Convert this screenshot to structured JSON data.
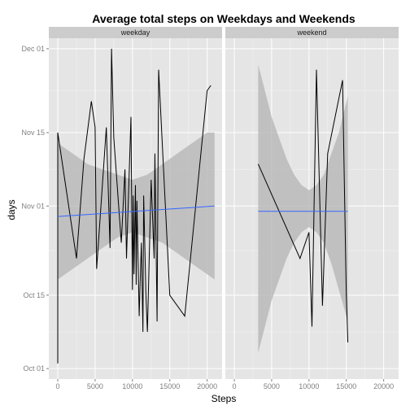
{
  "chart_data": {
    "type": "line",
    "title": "Average total steps on Weekdays and Weekends",
    "xlabel": "Steps",
    "ylabel": "days",
    "xlim": [
      -1200,
      22000
    ],
    "ylim": [
      "2012-09-29",
      "2012-12-03"
    ],
    "x_ticks": [
      0,
      5000,
      10000,
      15000,
      20000
    ],
    "x_tick_labels": [
      "0",
      "5000",
      "10000",
      "15000",
      "20000"
    ],
    "y_ticks": [
      "2012-10-01",
      "2012-10-15",
      "2012-11-01",
      "2012-11-15",
      "2012-12-01"
    ],
    "y_tick_labels": [
      "Oct 01",
      "Oct 15",
      "Nov 01",
      "Nov 15",
      "Dec 01"
    ],
    "grid": true,
    "colors": {
      "panel_bg": "#e5e5e5",
      "strip_bg": "#cccccc",
      "grid_major": "#ffffff",
      "grid_minor": "#f2f2f2",
      "line": "#000000",
      "smooth": "#3366ff",
      "ribbon": "#b3b3b3"
    },
    "panels": [
      {
        "facet": "weekday",
        "series": {
          "x": [
            0,
            0,
            2500,
            3500,
            4500,
            5000,
            5200,
            6500,
            7000,
            7200,
            7500,
            8500,
            9000,
            9200,
            9800,
            10000,
            10100,
            10200,
            10400,
            10500,
            10600,
            10900,
            11000,
            11200,
            11400,
            11500,
            11800,
            12000,
            12500,
            12900,
            13000,
            13300,
            13500,
            15000,
            17000,
            20000,
            20500
          ],
          "y": [
            "2012-10-02",
            "2012-11-15",
            "2012-10-22",
            "2012-11-10",
            "2012-11-21",
            "2012-11-16",
            "2012-10-20",
            "2012-11-16",
            "2012-10-24",
            "2012-12-01",
            "2012-11-14",
            "2012-10-25",
            "2012-11-08",
            "2012-10-22",
            "2012-11-18",
            "2012-10-16",
            "2012-11-03",
            "2012-10-19",
            "2012-11-05",
            "2012-10-17",
            "2012-11-02",
            "2012-10-11",
            "2012-10-16",
            "2012-10-25",
            "2012-10-08",
            "2012-11-03",
            "2012-10-15",
            "2012-10-08",
            "2012-11-06",
            "2012-10-22",
            "2012-11-11",
            "2012-10-10",
            "2012-11-27",
            "2012-10-15",
            "2012-10-11",
            "2012-11-23",
            "2012-11-24"
          ]
        },
        "smooth": {
          "x": [
            0,
            21000
          ],
          "y": [
            "2012-10-30",
            "2012-11-01"
          ]
        },
        "ribbon": {
          "x": [
            0,
            2000,
            4000,
            6000,
            8000,
            10000,
            12000,
            14000,
            16000,
            18000,
            20000,
            21000
          ],
          "upper": [
            "2012-11-13",
            "2012-11-11",
            "2012-11-09",
            "2012-11-08",
            "2012-11-07",
            "2012-11-06",
            "2012-11-07",
            "2012-11-09",
            "2012-11-11",
            "2012-11-13",
            "2012-11-15",
            "2012-11-15"
          ],
          "lower": [
            "2012-10-18",
            "2012-10-20",
            "2012-10-22",
            "2012-10-24",
            "2012-10-26",
            "2012-10-27",
            "2012-10-26",
            "2012-10-25",
            "2012-10-23",
            "2012-10-21",
            "2012-10-19",
            "2012-10-18"
          ]
        }
      },
      {
        "facet": "weekend",
        "series": {
          "x": [
            3200,
            8800,
            10000,
            10400,
            11000,
            11800,
            12500,
            14500,
            15000,
            15200
          ],
          "y": [
            "2012-11-09",
            "2012-10-22",
            "2012-10-27",
            "2012-10-09",
            "2012-11-27",
            "2012-10-13",
            "2012-11-11",
            "2012-11-25",
            "2012-10-15",
            "2012-10-06"
          ]
        },
        "smooth": {
          "x": [
            3200,
            15200
          ],
          "y": [
            "2012-10-31",
            "2012-10-31"
          ]
        },
        "ribbon": {
          "x": [
            3200,
            5000,
            6000,
            7000,
            8000,
            9000,
            10000,
            11000,
            12000,
            13000,
            14000,
            15200
          ],
          "upper": [
            "2012-11-28",
            "2012-11-18",
            "2012-11-14",
            "2012-11-10",
            "2012-11-07",
            "2012-11-05",
            "2012-11-04",
            "2012-11-05",
            "2012-11-07",
            "2012-11-11",
            "2012-11-15",
            "2012-11-22"
          ],
          "lower": [
            "2012-10-04",
            "2012-10-14",
            "2012-10-18",
            "2012-10-22",
            "2012-10-25",
            "2012-10-27",
            "2012-10-28",
            "2012-10-27",
            "2012-10-25",
            "2012-10-21",
            "2012-10-16",
            "2012-10-10"
          ]
        }
      }
    ]
  }
}
